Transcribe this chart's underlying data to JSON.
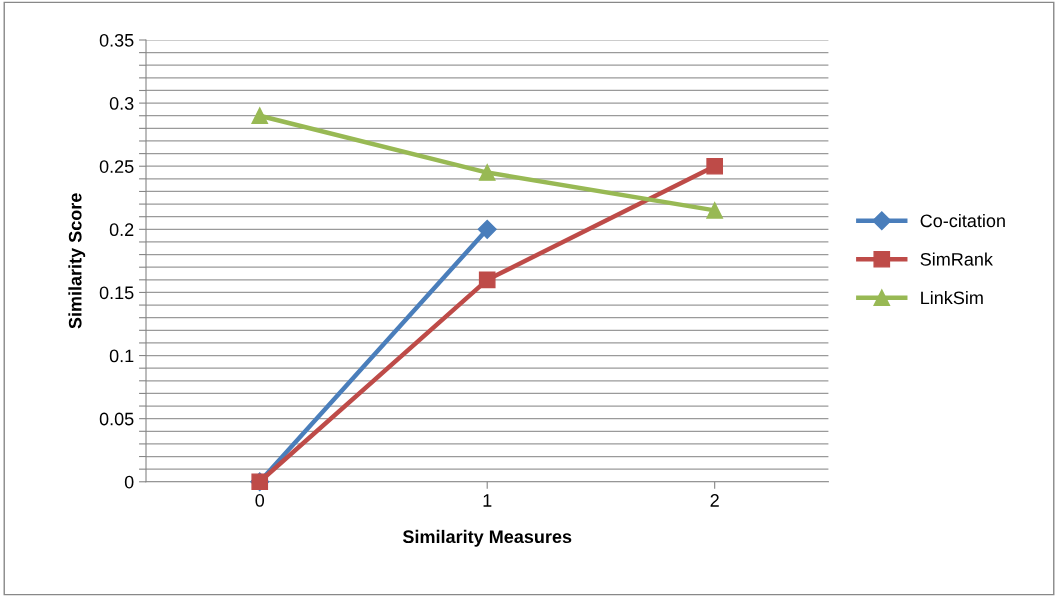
{
  "chart_data": {
    "type": "line",
    "xlabel": "Similarity Measures",
    "ylabel": "Similarity Score",
    "categories": [
      "0",
      "1",
      "2"
    ],
    "series": [
      {
        "name": "Co-citation",
        "color": "#4a7ebb",
        "marker": "diamond",
        "values": [
          0,
          0.2,
          null
        ]
      },
      {
        "name": "SimRank",
        "color": "#be4b48",
        "marker": "square",
        "values": [
          0,
          0.16,
          0.25
        ]
      },
      {
        "name": "LinkSim",
        "color": "#98b954",
        "marker": "triangle",
        "values": [
          0.29,
          0.245,
          0.215
        ]
      }
    ],
    "ylim": [
      0,
      0.35
    ],
    "yticks": [
      0,
      {
        "value": 0.01,
        "label": null
      },
      {
        "value": 0.02,
        "label": null
      },
      {
        "value": 0.03,
        "label": null
      },
      {
        "value": 0.04,
        "label": null
      },
      0.05,
      {
        "value": 0.06,
        "label": null
      },
      {
        "value": 0.07,
        "label": null
      },
      {
        "value": 0.08,
        "label": null
      },
      {
        "value": 0.09,
        "label": null
      },
      0.1,
      {
        "value": 0.11,
        "label": null
      },
      {
        "value": 0.12,
        "label": null
      },
      {
        "value": 0.13,
        "label": null
      },
      {
        "value": 0.14,
        "label": null
      },
      0.15,
      {
        "value": 0.16,
        "label": null
      },
      {
        "value": 0.17,
        "label": null
      },
      {
        "value": 0.18,
        "label": null
      },
      {
        "value": 0.19,
        "label": null
      },
      0.2,
      {
        "value": 0.21,
        "label": null
      },
      {
        "value": 0.22,
        "label": null
      },
      {
        "value": 0.23,
        "label": null
      },
      {
        "value": 0.24,
        "label": null
      },
      0.25,
      {
        "value": 0.26,
        "label": null
      },
      {
        "value": 0.27,
        "label": null
      },
      {
        "value": 0.28,
        "label": null
      },
      {
        "value": 0.29,
        "label": null
      },
      0.3,
      {
        "value": 0.31,
        "label": null
      },
      {
        "value": 0.32,
        "label": null
      },
      {
        "value": 0.33,
        "label": null
      },
      {
        "value": 0.34,
        "label": null
      },
      0.35
    ],
    "grid": "y",
    "legend": "right",
    "line_style": "solid"
  }
}
